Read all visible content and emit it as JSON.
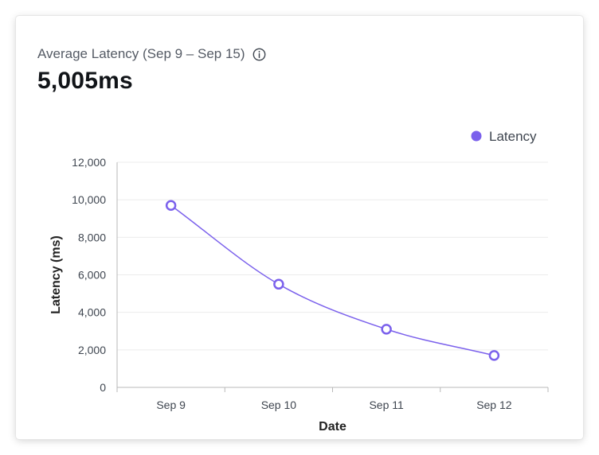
{
  "header": {
    "title": "Average Latency (Sep 9 – Sep 15)",
    "value": "5,005ms"
  },
  "icons": {
    "info": "info-circle-icon"
  },
  "colors": {
    "series": "#7b61ec",
    "grid": "#ececec",
    "axis": "#b9b9b9",
    "tick_text": "#3f4650",
    "axis_title": "#222222"
  },
  "chart_data": {
    "type": "line",
    "title": "",
    "xlabel": "Date",
    "ylabel": "Latency (ms)",
    "categories": [
      "Sep 9",
      "Sep 10",
      "Sep 11",
      "Sep 12"
    ],
    "series": [
      {
        "name": "Latency",
        "values": [
          9700,
          5500,
          3100,
          1700
        ]
      }
    ],
    "ylim": [
      0,
      12000
    ],
    "yticks": [
      0,
      2000,
      4000,
      6000,
      8000,
      10000,
      12000
    ],
    "ytick_labels": [
      "0",
      "2,000",
      "4,000",
      "6,000",
      "8,000",
      "10,000",
      "12,000"
    ],
    "grid": true,
    "legend": "top-right",
    "marker": "hollow-circle"
  }
}
